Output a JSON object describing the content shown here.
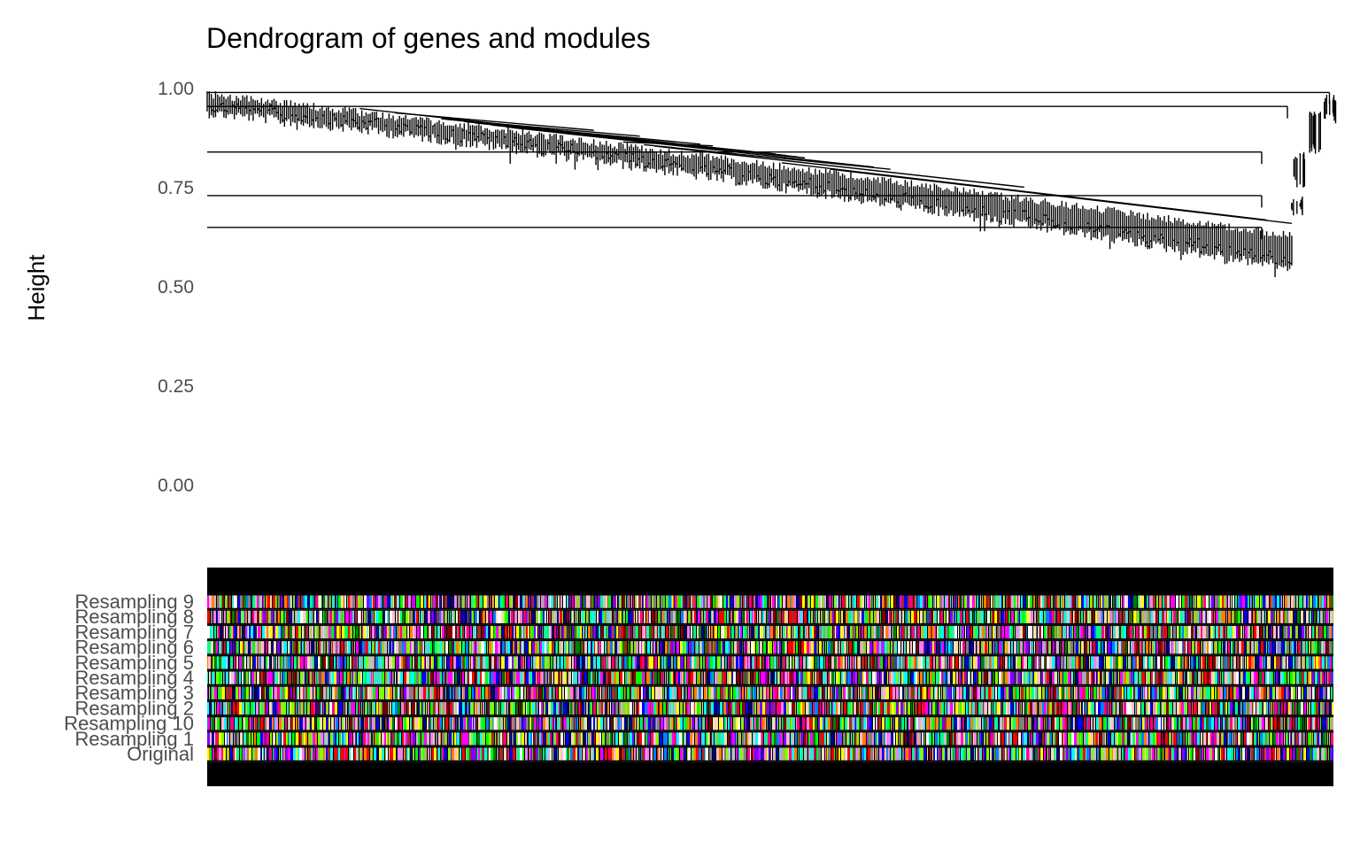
{
  "chart_data": {
    "type": "dendrogram",
    "title": "Dendrogram of genes and modules",
    "ylabel": "Height",
    "xlabel": "",
    "ylim": [
      0,
      1
    ],
    "y_ticks": [
      "0.00",
      "0.25",
      "0.50",
      "0.75",
      "1.00"
    ],
    "grid": false,
    "dendrogram": {
      "top_merge_height": 0.99,
      "leaf_height_range": [
        0.56,
        0.95
      ],
      "major_branches": [
        {
          "span": [
            0.0,
            0.965
          ],
          "merge_height": 0.99
        },
        {
          "span": [
            0.0,
            0.945
          ],
          "merge_height": 0.955
        },
        {
          "span": [
            0.0,
            0.93
          ],
          "merge_height": 0.84
        },
        {
          "span": [
            0.0,
            0.93
          ],
          "merge_height": 0.73
        },
        {
          "span": [
            0.0,
            0.93
          ],
          "merge_height": 0.65
        }
      ]
    },
    "color_rows": [
      "Resampling 9",
      "Resampling 8",
      "Resampling 7",
      "Resampling 6",
      "Resampling 5",
      "Resampling 4",
      "Resampling 3",
      "Resampling 2",
      "Resampling 10",
      "Resampling 1",
      "Original"
    ],
    "color_palette": [
      "#ff0000",
      "#00ff00",
      "#0000ff",
      "#ffff00",
      "#ff00ff",
      "#00ffff",
      "#ff8000",
      "#8000ff",
      "#00ff80",
      "#ff0080",
      "#80ff00",
      "#0080ff",
      "#ffffff",
      "#808080",
      "#c0c0c0",
      "#800000",
      "#008000",
      "#000080",
      "#ffc0cb",
      "#a52a2a",
      "#40e0d0",
      "#ee82ee",
      "#f5deb3",
      "#9acd32"
    ]
  }
}
